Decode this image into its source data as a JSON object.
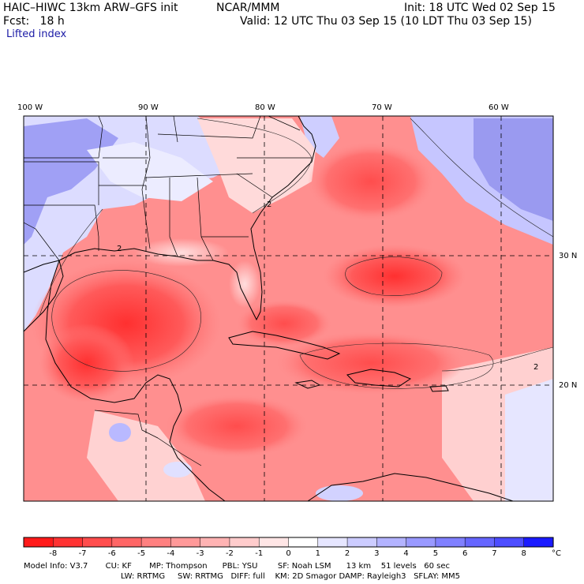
{
  "header": {
    "model_title": "HAIC–HIWC 13km ARW–GFS init",
    "org": "NCAR/MMM",
    "init": "Init: 18 UTC Wed 02 Sep 15",
    "fcst": "Fcst:   18 h",
    "valid": "Valid: 12 UTC Thu 03 Sep 15 (10 LDT Thu 03 Sep 15)",
    "field": "Lifted index"
  },
  "map": {
    "lon_labels": [
      "100 W",
      "90 W",
      "80 W",
      "70 W",
      "60 W"
    ],
    "lat_labels": [
      "30 N",
      "20 N"
    ],
    "contour_label": "2"
  },
  "colorbar": {
    "ticks": [
      "-8",
      "-7",
      "-6",
      "-5",
      "-4",
      "-3",
      "-2",
      "-1",
      "0",
      "1",
      "2",
      "3",
      "4",
      "5",
      "6",
      "7",
      "8"
    ],
    "unit": "°C",
    "colors": [
      "#ff1a1a",
      "#ff3333",
      "#ff4d4d",
      "#ff6666",
      "#ff8080",
      "#ff9999",
      "#ffb3b3",
      "#ffcccc",
      "#ffe6e6",
      "#ffffff",
      "#e6e6ff",
      "#ccccff",
      "#b3b3ff",
      "#9999ff",
      "#8080ff",
      "#6666ff",
      "#4d4dff",
      "#1a1aff"
    ]
  },
  "footer": {
    "line1": "Model Info: V3.7       CU: KF       MP: Thompson      PBL: YSU        SF: Noah LSM      13 km    51 levels   60 sec",
    "line2": "LW: RRTMG     SW: RRTMG   DIFF: full    KM: 2D Smagor DAMP: Rayleigh3   SFLAY: MM5"
  }
}
